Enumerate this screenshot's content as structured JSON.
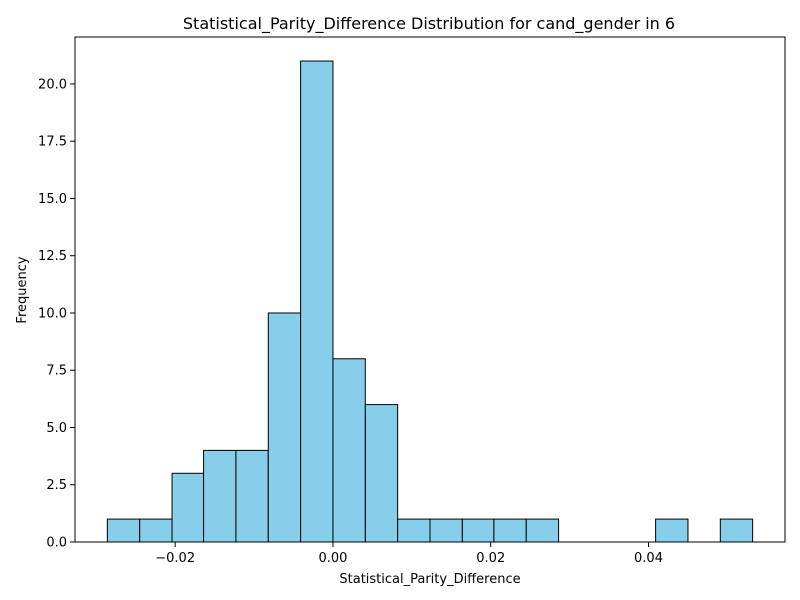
{
  "chart_data": {
    "type": "bar",
    "title": "Statistical_Parity_Difference Distribution for cand_gender in 6",
    "xlabel": "Statistical_Parity_Difference",
    "ylabel": "Frequency",
    "bin_edges": [
      -0.0286,
      -0.0245,
      -0.0204,
      -0.0164,
      -0.0123,
      -0.0082,
      -0.0041,
      0.0,
      0.0041,
      0.0082,
      0.0123,
      0.0164,
      0.0204,
      0.0245,
      0.0286,
      0.0327,
      0.0368,
      0.0409,
      0.045,
      0.0491,
      0.0532
    ],
    "values": [
      1,
      1,
      3,
      4,
      4,
      10,
      21,
      8,
      6,
      1,
      1,
      1,
      1,
      1,
      0,
      0,
      0,
      1,
      0,
      1
    ],
    "xlim": [
      -0.0327,
      0.0573
    ],
    "ylim": [
      0,
      22.05
    ],
    "xticks": [
      -0.02,
      0.0,
      0.02,
      0.04
    ],
    "xtick_labels": [
      "−0.02",
      "0.00",
      "0.02",
      "0.04"
    ],
    "yticks": [
      0,
      2.5,
      5,
      7.5,
      10,
      12.5,
      15,
      17.5,
      20
    ],
    "ytick_labels": [
      "0.0",
      "2.5",
      "5.0",
      "7.5",
      "10.0",
      "12.5",
      "15.0",
      "17.5",
      "20.0"
    ],
    "bar_color": "#87ceeb",
    "edge_color": "#000000",
    "grid": false,
    "legend": "none"
  }
}
